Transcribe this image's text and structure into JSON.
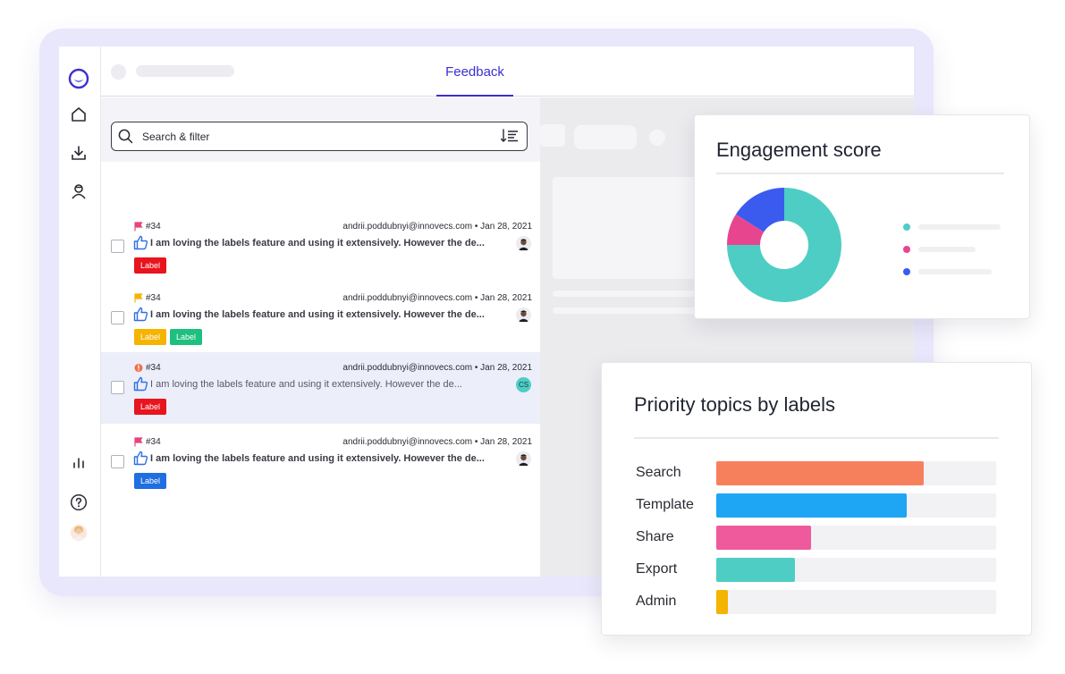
{
  "header": {
    "tab_label": "Feedback"
  },
  "search": {
    "placeholder": "Search & filter"
  },
  "colors": {
    "accent": "#3b2fd0"
  },
  "feedback_items": [
    {
      "id": "#34",
      "author": "andrii.poddubnyi@innovecs.com",
      "date": "Jan 28, 2021",
      "message": "I am loving the labels feature and using it extensively. However the de...",
      "flag_color": "#e8457a",
      "labels": [
        {
          "text": "Label",
          "color": "#e8141e"
        }
      ]
    },
    {
      "id": "#34",
      "author": "andrii.poddubnyi@innovecs.com",
      "date": "Jan 28, 2021",
      "message": "I am loving the labels feature and using it extensively. However the de...",
      "flag_color": "#f4b400",
      "labels": [
        {
          "text": "Label",
          "color": "#f4b400"
        },
        {
          "text": "Label",
          "color": "#1fbf7f"
        }
      ]
    },
    {
      "id": "#34",
      "author": "andrii.poddubnyi@innovecs.com",
      "date": "Jan 28, 2021",
      "message": "I am loving the labels feature and using it extensively. However the de...",
      "flag_color": "#f0704a",
      "avatar_initials": "CS",
      "labels": [
        {
          "text": "Label",
          "color": "#e8141e"
        }
      ]
    },
    {
      "id": "#34",
      "author": "andrii.poddubnyi@innovecs.com",
      "date": "Jan 28, 2021",
      "message": "I am loving the labels feature and using it extensively. However the de...",
      "flag_color": "#e8457a",
      "labels": [
        {
          "text": "Label",
          "color": "#1f6fe0"
        }
      ]
    }
  ],
  "engagement": {
    "title": "Engagement score",
    "chart_data": {
      "type": "pie",
      "title": "Engagement score",
      "slices": [
        {
          "value": 75,
          "color": "#4ecdc4"
        },
        {
          "value": 9,
          "color": "#e8458f"
        },
        {
          "value": 16,
          "color": "#3b5bef"
        }
      ]
    }
  },
  "priority": {
    "title": "Priority topics by labels",
    "chart_data": {
      "type": "bar",
      "title": "Priority topics by labels",
      "categories": [
        "Search",
        "Template",
        "Share",
        "Export",
        "Admin"
      ],
      "values": [
        74,
        68,
        34,
        28,
        4
      ],
      "xlim": [
        0,
        100
      ],
      "colors": [
        "#f7805c",
        "#1ea6f4",
        "#ee5a9c",
        "#4ecdc4",
        "#f4b400"
      ]
    }
  }
}
